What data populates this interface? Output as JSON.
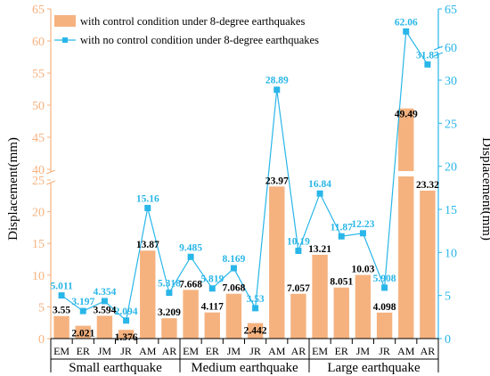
{
  "chart_data": {
    "type": "bar+line",
    "categories": [
      "EM",
      "ER",
      "JM",
      "JR",
      "AM",
      "AR",
      "EM",
      "ER",
      "JM",
      "JR",
      "AM",
      "AR",
      "EM",
      "ER",
      "JM",
      "JR",
      "AM",
      "AR"
    ],
    "groups": [
      "Small earthquake",
      "Medium earthquake",
      "Large earthquake"
    ],
    "series": [
      {
        "name": "with control condition under 8-degree earthquakes",
        "kind": "bar",
        "axis": "left",
        "values": [
          3.55,
          2.021,
          3.594,
          1.376,
          13.87,
          3.209,
          7.668,
          4.117,
          7.068,
          2.442,
          23.97,
          7.057,
          13.21,
          8.051,
          10.03,
          4.098,
          49.49,
          23.32
        ],
        "labels": [
          "3.55",
          "2.021",
          "3.594",
          "1.376",
          "13.87",
          "3.209",
          "7.668",
          "4.117",
          "7.068",
          "2.442",
          "23.97",
          "7.057",
          "13.21",
          "8.051",
          "10.03",
          "4.098",
          "49.49",
          "23.32"
        ]
      },
      {
        "name": "with no control condition under 8-degree earthquakes",
        "kind": "line",
        "axis": "right",
        "values": [
          5.011,
          3.197,
          4.354,
          2.094,
          15.16,
          5.318,
          9.485,
          5.819,
          8.169,
          3.53,
          28.89,
          10.19,
          16.84,
          11.87,
          12.23,
          5.908,
          62.06,
          31.83
        ],
        "labels": [
          "5.011",
          "3.197",
          "4.354",
          "2.094",
          "15.16",
          "5.318",
          "9.485",
          "5.819",
          "8.169",
          "3.53",
          "28.89",
          "10.19",
          "16.84",
          "11.87",
          "12.23",
          "5.908",
          "62.06",
          "31.83"
        ]
      }
    ],
    "ylabel": "Displacement(mm)",
    "y2label": "Displacement(mm)",
    "y_left_ticks_lower": [
      "0",
      "5",
      "10",
      "15",
      "20",
      "25"
    ],
    "y_left_ticks_upper": [
      "40",
      "45",
      "50",
      "55",
      "60",
      "65"
    ],
    "y_right_ticks_lower": [
      "0",
      "5",
      "10",
      "15",
      "20",
      "25",
      "30"
    ],
    "y_right_ticks_upper": [
      "60",
      "65"
    ],
    "axis_break": true,
    "colors": {
      "bar": "#f5b27f",
      "line": "#29b6e8",
      "axis_left": "#f5b27f",
      "axis_right": "#29b6e8"
    },
    "legend_position": "top-left"
  }
}
